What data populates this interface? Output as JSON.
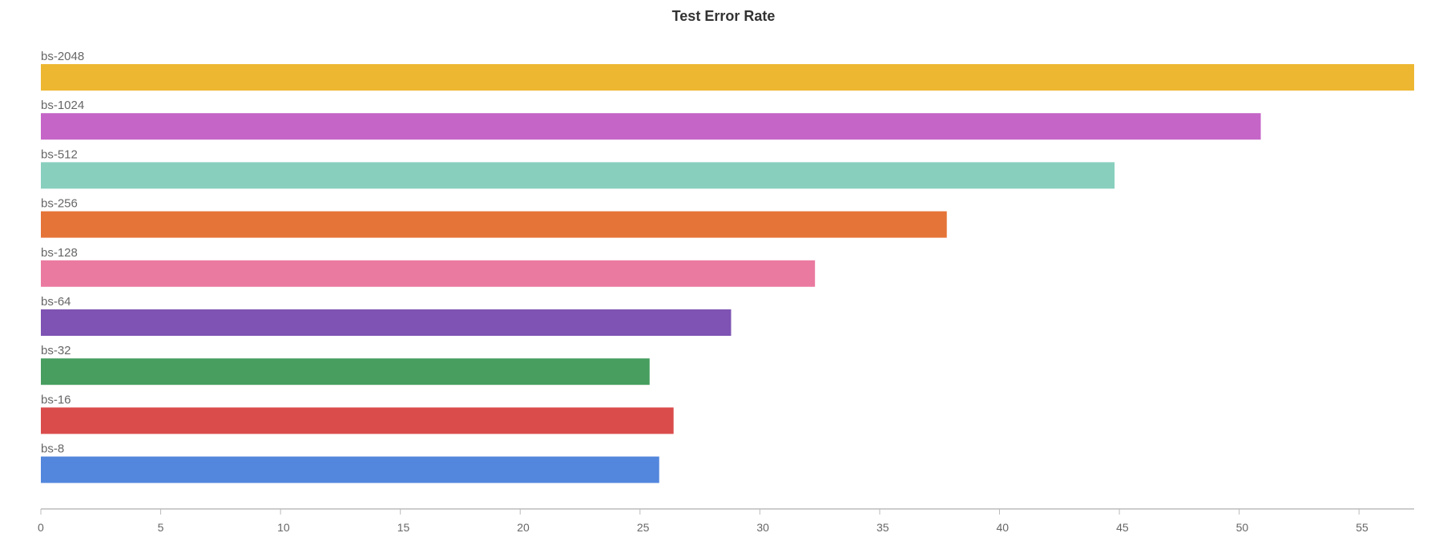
{
  "chart_data": {
    "type": "bar",
    "orientation": "horizontal",
    "title": "Test Error Rate",
    "xlabel": "",
    "ylabel": "",
    "categories": [
      "bs-2048",
      "bs-1024",
      "bs-512",
      "bs-256",
      "bs-128",
      "bs-64",
      "bs-32",
      "bs-16",
      "bs-8"
    ],
    "values": [
      57.3,
      50.9,
      44.8,
      37.8,
      32.3,
      28.8,
      25.4,
      26.4,
      25.8
    ],
    "colors": [
      "#EDB732",
      "#C565C7",
      "#88CFBE",
      "#E57438",
      "#EA7AA0",
      "#7E53B3",
      "#479E5F",
      "#DA4C4C",
      "#5387DD"
    ],
    "xlim": [
      0,
      57.3
    ],
    "xticks": [
      0,
      5,
      10,
      15,
      20,
      25,
      30,
      35,
      40,
      45,
      50,
      55
    ],
    "grid": false,
    "legend": "none"
  }
}
